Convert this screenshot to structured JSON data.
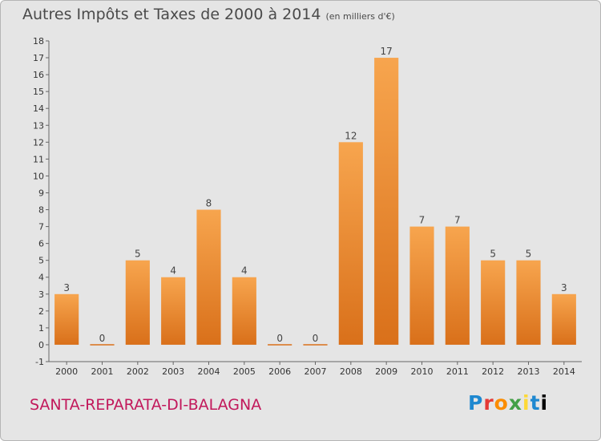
{
  "chart_data": {
    "type": "bar",
    "title": "Autres Impôts et Taxes de 2000 à 2014",
    "subtitle": "(en milliers d'€)",
    "categories": [
      "2000",
      "2001",
      "2002",
      "2003",
      "2004",
      "2005",
      "2006",
      "2007",
      "2008",
      "2009",
      "2010",
      "2011",
      "2012",
      "2013",
      "2014"
    ],
    "values": [
      3,
      0,
      5,
      4,
      8,
      4,
      0,
      0,
      12,
      17,
      7,
      7,
      5,
      5,
      3
    ],
    "yticks": [
      -1,
      0,
      1,
      2,
      3,
      4,
      5,
      6,
      7,
      8,
      9,
      10,
      11,
      12,
      13,
      14,
      15,
      16,
      17,
      18
    ],
    "ylim": [
      -1,
      18
    ],
    "grid": false,
    "bar_color": "#f08c28"
  },
  "footer": {
    "location": "SANTA-REPARATA-DI-BALAGNA",
    "logo_letters": [
      "P",
      "r",
      "o",
      "x",
      "i",
      "t",
      "i"
    ]
  }
}
